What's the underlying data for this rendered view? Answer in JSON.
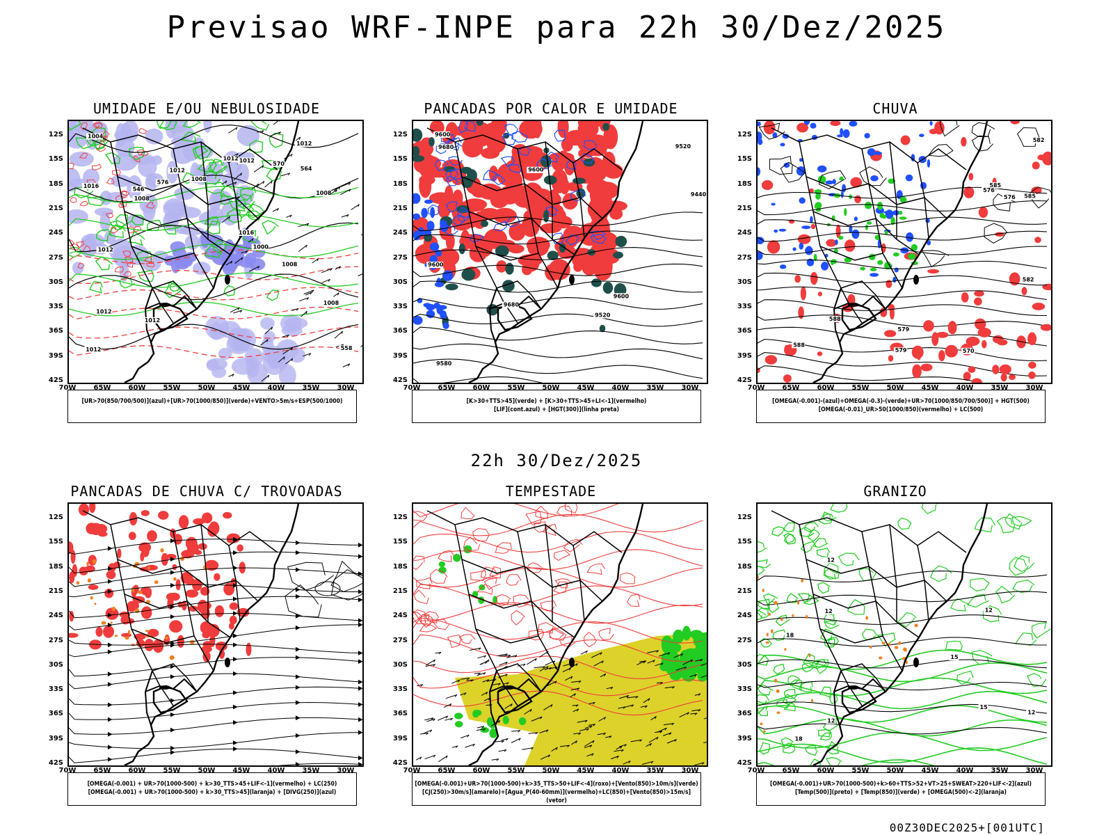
{
  "main_title": "Previsao WRF-INPE  para 22h 30/Dez/2025",
  "mid_title": "22h 30/Dez/2025",
  "footer": "00Z30DEC2025+[001UTC]",
  "lat_labels": [
    "12S",
    "15S",
    "18S",
    "21S",
    "24S",
    "27S",
    "30S",
    "33S",
    "36S",
    "39S",
    "42S"
  ],
  "lon_labels": [
    "70W",
    "65W",
    "60W",
    "55W",
    "50W",
    "45W",
    "40W",
    "35W",
    "30W"
  ],
  "panels": [
    {
      "title": "UMIDADE E/OU NEBULOSIDADE",
      "legend": [
        "[UR>70(850/700/500)](azul)+[UR>70(1000/850)](verde)+VENTO>5m/s+ESP(500/1000)"
      ]
    },
    {
      "title": "PANCADAS POR CALOR E UMIDADE",
      "legend": [
        "[K>30+TTS>45](verde) + [K>30+TTS>45+LI<-1](vermelho)",
        "[LIF](cont.azul) + [HGT(300)](linha preta)"
      ]
    },
    {
      "title": "CHUVA",
      "legend": [
        "[OMEGA(-0.001)-(azul)+OMEGA(-0.3)-(verde)+UR>70(1000/850/700/500)] + HGT(500)",
        "[OMEGA(-0.01)_UR>50(1000/850)(vermelho) + LC(500)"
      ]
    },
    {
      "title": "PANCADAS DE CHUVA C/ TROVOADAS",
      "legend": [
        "[OMEGA(-0.001) + UR>70(1000-500) + k>30_TTS>45+LIF<-1](vermelho) + LC(250)",
        "[OMEGA(-0.001) + UR>70(1000-500) + k>30_TTS>45](laranja) + [DIVG(250)](azul)"
      ]
    },
    {
      "title": "TEMPESTADE",
      "legend": [
        "[OMEGA(-0.001)+UR>70(1000-500)+k>35_TTS>50+LIF<-4](roxo)+[Vento(850)>10m/s](verde)",
        "[CJ(250)>30m/s](amarelo)+[Agua_P(40-60mm)](vermelho)+LC(850)+[Vento(850)>15m/s](vetor)"
      ]
    },
    {
      "title": "GRANIZO",
      "legend": [
        "[OMEGA(-0.001)+UR>70(1000-500)+k>60+TTS>52+VT>25+SWEAT>220+LIF<-2](azul)",
        "[Temp(500)](preto) + [Temp(850)](verde) + [OMEGA(500)<-2](laranja)"
      ]
    }
  ],
  "contour_labels": {
    "p1": [
      "1016",
      "1012",
      "1012",
      "1008",
      "1008",
      "1012",
      "1012",
      "1016",
      "1012",
      "1012",
      "1008",
      "1012",
      "1008",
      "1004",
      "1000",
      "576",
      "570",
      "564",
      "558",
      "546",
      "1008",
      "1012"
    ],
    "p2": [
      "9680",
      "9600",
      "9600",
      "9520",
      "9440",
      "9520",
      "9600",
      "9680",
      "9580",
      "9600"
    ],
    "p3": [
      "588",
      "585",
      "582",
      "579",
      "576",
      "588",
      "585",
      "582",
      "579",
      "576",
      "570"
    ],
    "p6": [
      "12",
      "12",
      "15",
      "18",
      "12",
      "12",
      "15",
      "18",
      "12"
    ]
  },
  "colors": {
    "red": "#f03c3c",
    "green": "#22cc22",
    "blue": "#2050ff",
    "lavender": "#b4b4f0",
    "yellow": "#dcd22a",
    "darkgreen": "#1f4f4a",
    "orange": "#f08020"
  }
}
